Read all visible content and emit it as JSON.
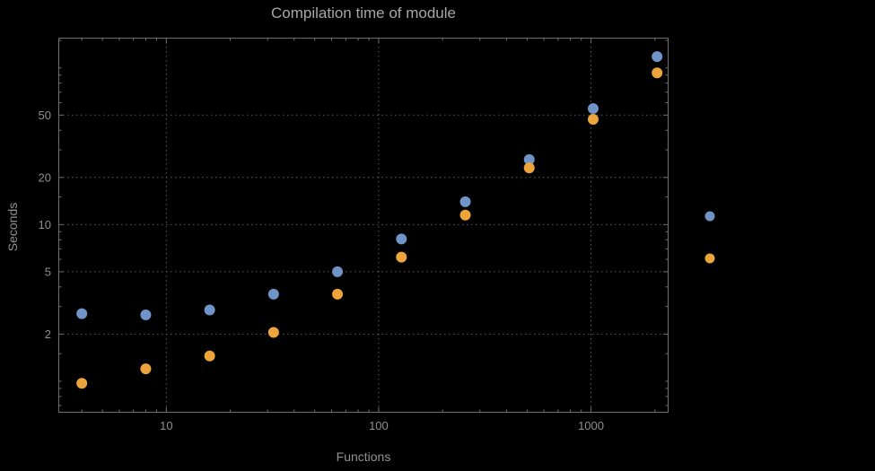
{
  "background": "#000000",
  "frame_color": "#6e6e6e",
  "text_colors": {
    "title": "#a6a6a6",
    "ticks": "#8f8f8f",
    "axis_labels": "#919191"
  },
  "chart_data": {
    "type": "scatter",
    "title": "Compilation time of module",
    "xlabel": "Functions",
    "ylabel": "Seconds",
    "x_scale": "log",
    "y_scale": "log",
    "xlim": [
      3.1,
      2320
    ],
    "ylim": [
      0.63,
      156
    ],
    "grid": {
      "show": true,
      "style": "dotted",
      "color": "#5a5a5a"
    },
    "x": [
      4,
      8,
      16,
      32,
      64,
      128,
      256,
      512,
      1024,
      2048
    ],
    "series": [
      {
        "name": "blue",
        "color": "#7093c8",
        "values": [
          2.7,
          2.65,
          2.85,
          3.6,
          5.0,
          8.1,
          14,
          26,
          55,
          118
        ]
      },
      {
        "name": "orange",
        "color": "#eda53b",
        "values": [
          0.97,
          1.2,
          1.45,
          2.05,
          3.6,
          6.2,
          11.5,
          23,
          47,
          93
        ]
      }
    ],
    "x_ticks": {
      "major": [
        10,
        100,
        1000
      ],
      "major_labels": [
        "10",
        "100",
        "1000"
      ],
      "minor": [
        4,
        5,
        6,
        7,
        8,
        9,
        20,
        30,
        40,
        50,
        60,
        70,
        80,
        90,
        200,
        300,
        400,
        500,
        600,
        700,
        800,
        900,
        2000
      ]
    },
    "y_ticks": {
      "major": [
        2,
        5,
        10,
        20,
        50
      ],
      "major_labels": [
        "2",
        "5",
        "10",
        "20",
        "50"
      ],
      "minor": [
        0.7,
        0.8,
        0.9,
        1,
        1.5,
        3,
        4,
        6,
        7,
        8,
        9,
        15,
        30,
        40,
        60,
        70,
        80,
        90,
        100,
        150
      ]
    },
    "legend": {
      "position": "right-center",
      "markers": [
        {
          "color": "#7093c8",
          "label": ""
        },
        {
          "color": "#eda53b",
          "label": ""
        }
      ]
    }
  }
}
